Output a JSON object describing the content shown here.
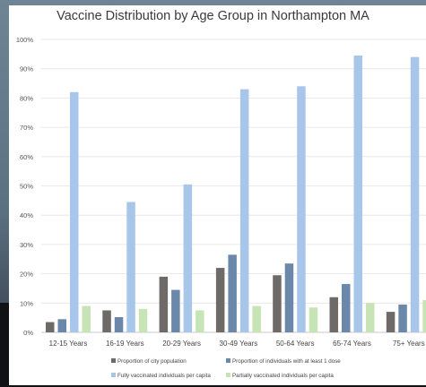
{
  "chart_data": {
    "type": "bar",
    "title": "Vaccine Distribution by Age Group in Northampton MA",
    "categories": [
      "12-15 Years",
      "16-19 Years",
      "20-29 Years",
      "30-49 Years",
      "50-64 Years",
      "65-74 Years",
      "75+ Years"
    ],
    "ylim": [
      0,
      100
    ],
    "yticks": [
      "0%",
      "10%",
      "20%",
      "30%",
      "40%",
      "50%",
      "60%",
      "70%",
      "80%",
      "90%",
      "100%"
    ],
    "grid": true,
    "legend_position": "bottom",
    "series": [
      {
        "name": "Proportion of city population",
        "color": "#6e6a68",
        "values": [
          3.5,
          7.5,
          19,
          22,
          19.5,
          12,
          7
        ]
      },
      {
        "name": "Proportion of individuals with at least 1 dose",
        "color": "#6b88ab",
        "values": [
          4.5,
          5.2,
          14.5,
          26.5,
          23.5,
          16.5,
          9.5
        ]
      },
      {
        "name": "Fully vaccinated individuals per capita",
        "color": "#a7c6ea",
        "values": [
          82,
          44.5,
          50.5,
          83,
          84,
          94.5,
          94
        ]
      },
      {
        "name": "Partially vaccinated individuals per capita",
        "color": "#c7e4b6",
        "values": [
          9,
          8,
          7.5,
          9,
          8.5,
          10,
          11
        ]
      }
    ]
  }
}
